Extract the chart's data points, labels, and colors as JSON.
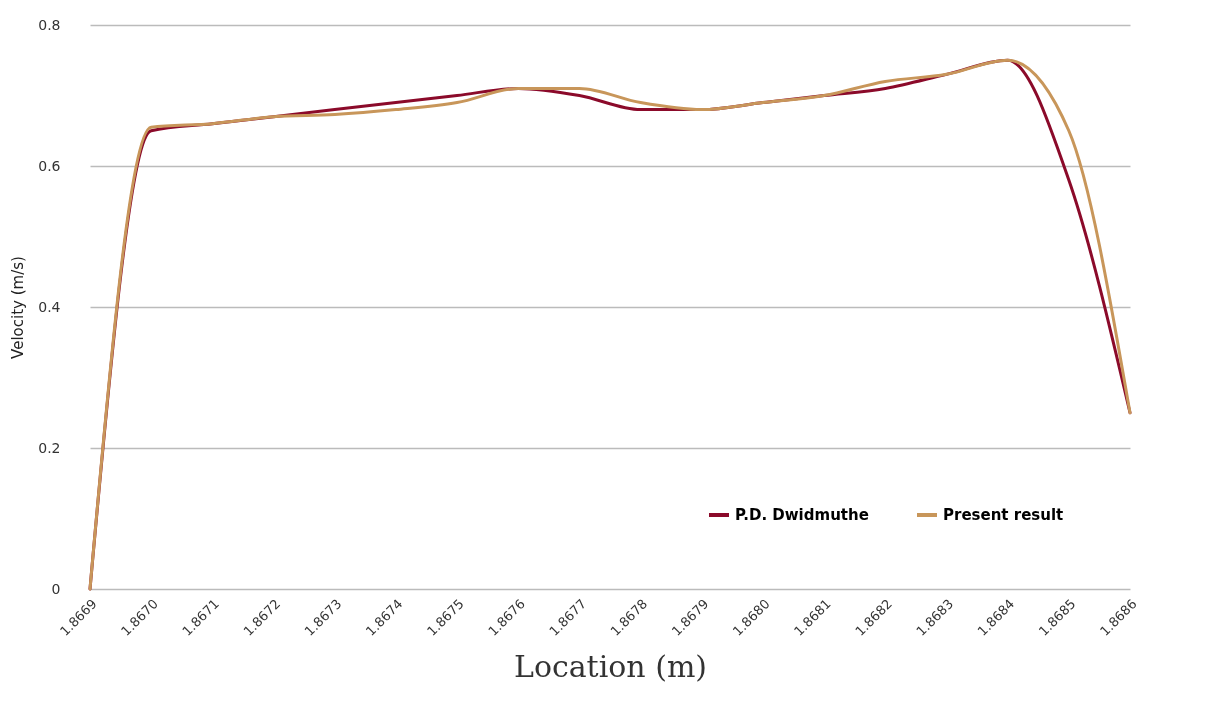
{
  "chart_data": {
    "type": "line",
    "xlabel": "Location (m)",
    "ylabel": "Velocity (m/s)",
    "categories": [
      "1.8669",
      "1.8670",
      "1.8671",
      "1.8672",
      "1.8673",
      "1.8674",
      "1.8675",
      "1.8676",
      "1.8677",
      "1.8678",
      "1.8679",
      "1.8680",
      "1.8681",
      "1.8682",
      "1.8683",
      "1.8684",
      "1.8685",
      "1.8686"
    ],
    "series": [
      {
        "name": "P.D. Dwidmuthe",
        "color": "#8b0a2a",
        "values": [
          0,
          0.65,
          0.66,
          0.67,
          0.68,
          0.69,
          0.7,
          0.71,
          0.7,
          0.68,
          0.68,
          0.69,
          0.7,
          0.71,
          0.73,
          0.75,
          0.58,
          0.25
        ]
      },
      {
        "name": "Present result",
        "color": "#c8965a",
        "values": [
          0,
          0.655,
          0.66,
          0.67,
          0.673,
          0.68,
          0.69,
          0.71,
          0.71,
          0.69,
          0.68,
          0.69,
          0.7,
          0.72,
          0.73,
          0.75,
          0.65,
          0.25
        ]
      }
    ],
    "ylim": [
      0,
      0.8
    ],
    "yticks": [
      0,
      0.2,
      0.4,
      0.6,
      0.8
    ],
    "grid": "y",
    "legend": "bottom right"
  }
}
